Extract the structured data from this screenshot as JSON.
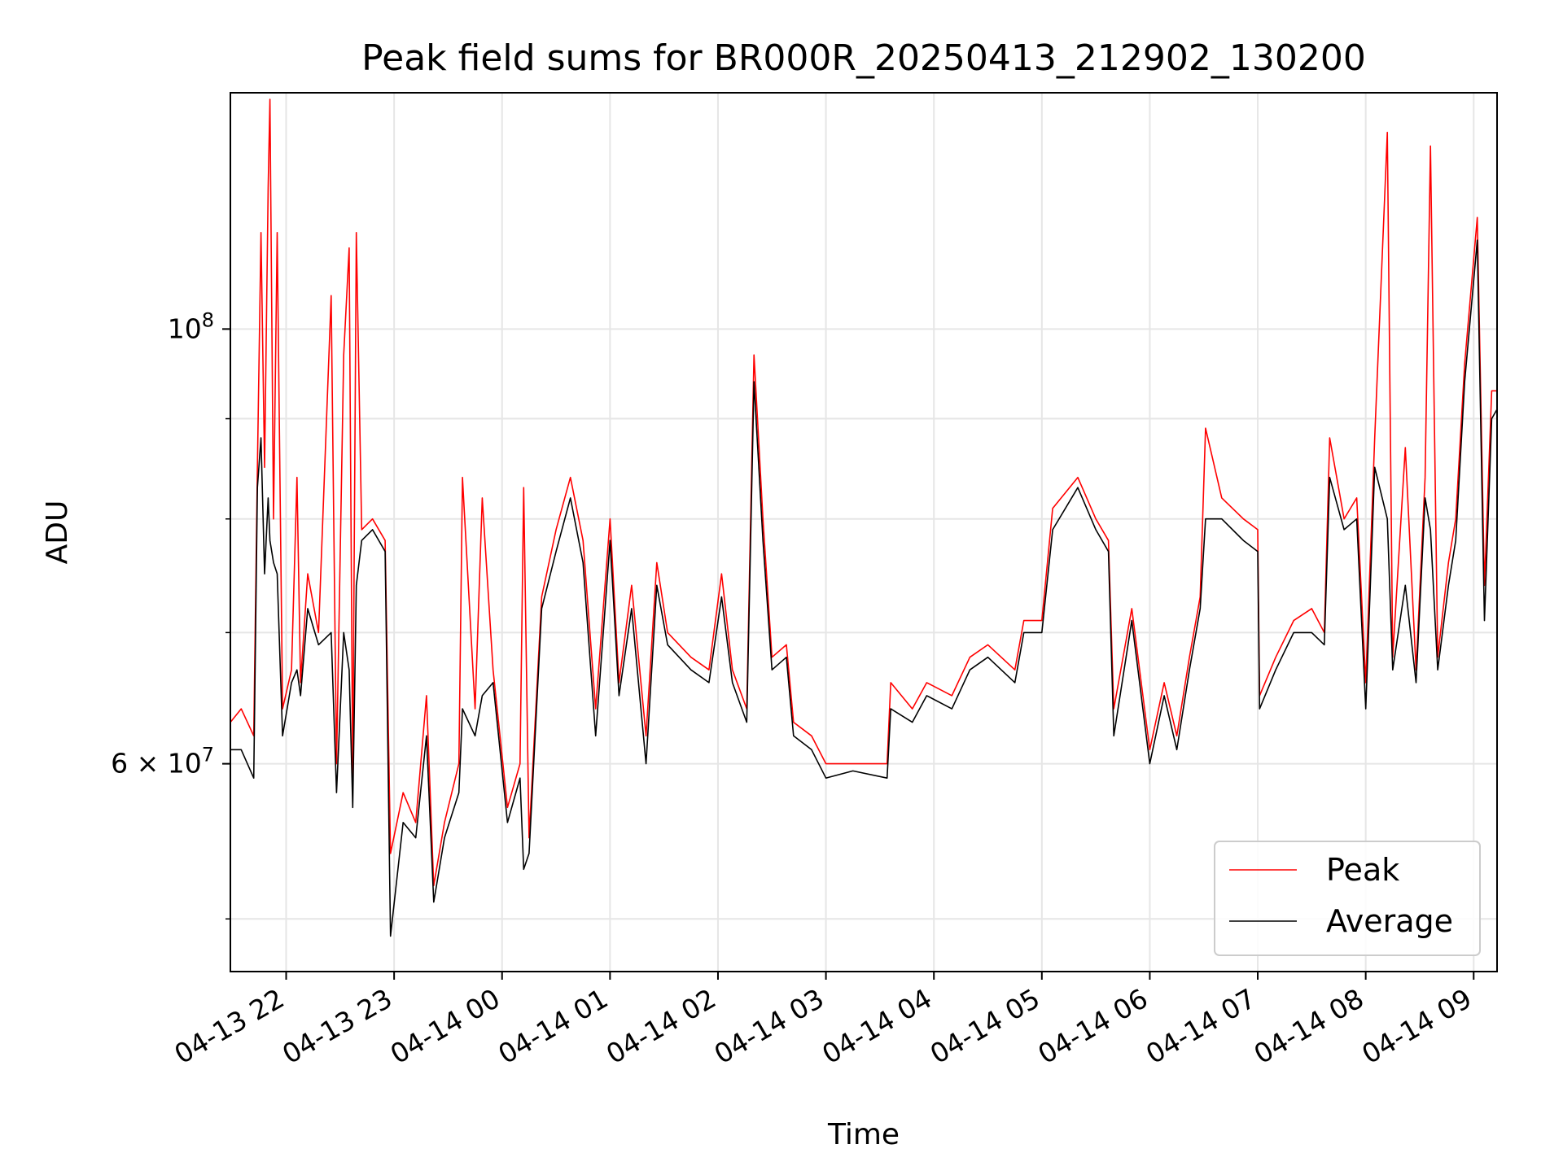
{
  "chart_data": {
    "type": "line",
    "title": "Peak field sums for BR000R_20250413_212902_130200",
    "xlabel": "Time",
    "ylabel": "ADU",
    "y_scale": "log",
    "xlim": [
      "2025-04-13 21:29",
      "2025-04-14 09:13"
    ],
    "ylim": [
      47000000,
      132000000
    ],
    "x_tick_labels": [
      "04-13 22",
      "04-13 23",
      "04-14 00",
      "04-14 01",
      "04-14 02",
      "04-14 03",
      "04-14 04",
      "04-14 05",
      "04-14 06",
      "04-14 07",
      "04-14 08",
      "04-14 09"
    ],
    "x_tick_times": [
      "2025-04-13 22:00",
      "2025-04-13 23:00",
      "2025-04-14 00:00",
      "2025-04-14 01:00",
      "2025-04-14 02:00",
      "2025-04-14 03:00",
      "2025-04-14 04:00",
      "2025-04-14 05:00",
      "2025-04-14 06:00",
      "2025-04-14 07:00",
      "2025-04-14 08:00",
      "2025-04-14 09:00"
    ],
    "y_tick_values": [
      100000000,
      60000000
    ],
    "y_tick_labels": [
      {
        "base": "10",
        "exp": "8"
      },
      {
        "mant": "6 × ",
        "base": "10",
        "exp": "7"
      }
    ],
    "y_minor_ticks": [
      50000000,
      70000000,
      80000000,
      90000000
    ],
    "grid": true,
    "legend_position": "lower right",
    "legend": [
      "Peak",
      "Average"
    ],
    "colors": {
      "Peak": "#ff0000",
      "Average": "#000000"
    },
    "series": [
      {
        "name": "Peak",
        "color": "#ff0000",
        "points": [
          [
            "2025-04-13 21:29",
            63000000
          ],
          [
            "2025-04-13 21:35",
            64000000
          ],
          [
            "2025-04-13 21:42",
            62000000
          ],
          [
            "2025-04-13 21:44",
            85000000
          ],
          [
            "2025-04-13 21:46",
            112000000
          ],
          [
            "2025-04-13 21:48",
            85000000
          ],
          [
            "2025-04-13 21:50",
            118000000
          ],
          [
            "2025-04-13 21:51",
            131000000
          ],
          [
            "2025-04-13 21:53",
            80000000
          ],
          [
            "2025-04-13 21:55",
            112000000
          ],
          [
            "2025-04-13 21:58",
            64000000
          ],
          [
            "2025-04-13 22:03",
            67000000
          ],
          [
            "2025-04-13 22:06",
            84000000
          ],
          [
            "2025-04-13 22:08",
            66000000
          ],
          [
            "2025-04-13 22:12",
            75000000
          ],
          [
            "2025-04-13 22:18",
            70000000
          ],
          [
            "2025-04-13 22:25",
            104000000
          ],
          [
            "2025-04-13 22:28",
            60000000
          ],
          [
            "2025-04-13 22:32",
            97000000
          ],
          [
            "2025-04-13 22:35",
            110000000
          ],
          [
            "2025-04-13 22:37",
            59000000
          ],
          [
            "2025-04-13 22:39",
            112000000
          ],
          [
            "2025-04-13 22:42",
            79000000
          ],
          [
            "2025-04-13 22:48",
            80000000
          ],
          [
            "2025-04-13 22:55",
            78000000
          ],
          [
            "2025-04-13 22:58",
            54000000
          ],
          [
            "2025-04-13 23:05",
            58000000
          ],
          [
            "2025-04-13 23:12",
            56000000
          ],
          [
            "2025-04-13 23:18",
            65000000
          ],
          [
            "2025-04-13 23:22",
            52000000
          ],
          [
            "2025-04-13 23:28",
            56000000
          ],
          [
            "2025-04-13 23:36",
            60000000
          ],
          [
            "2025-04-13 23:38",
            84000000
          ],
          [
            "2025-04-13 23:45",
            64000000
          ],
          [
            "2025-04-13 23:49",
            82000000
          ],
          [
            "2025-04-13 23:55",
            67000000
          ],
          [
            "2025-04-14 00:03",
            57000000
          ],
          [
            "2025-04-14 00:10",
            60000000
          ],
          [
            "2025-04-14 00:12",
            83000000
          ],
          [
            "2025-04-14 00:15",
            55000000
          ],
          [
            "2025-04-14 00:22",
            73000000
          ],
          [
            "2025-04-14 00:30",
            79000000
          ],
          [
            "2025-04-14 00:38",
            84000000
          ],
          [
            "2025-04-14 00:45",
            78000000
          ],
          [
            "2025-04-14 00:52",
            64000000
          ],
          [
            "2025-04-14 01:00",
            80000000
          ],
          [
            "2025-04-14 01:05",
            66000000
          ],
          [
            "2025-04-14 01:12",
            74000000
          ],
          [
            "2025-04-14 01:20",
            62000000
          ],
          [
            "2025-04-14 01:26",
            76000000
          ],
          [
            "2025-04-14 01:32",
            70000000
          ],
          [
            "2025-04-14 01:45",
            68000000
          ],
          [
            "2025-04-14 01:55",
            67000000
          ],
          [
            "2025-04-14 02:02",
            75000000
          ],
          [
            "2025-04-14 02:08",
            67000000
          ],
          [
            "2025-04-14 02:16",
            64000000
          ],
          [
            "2025-04-14 02:20",
            97000000
          ],
          [
            "2025-04-14 02:25",
            80000000
          ],
          [
            "2025-04-14 02:30",
            68000000
          ],
          [
            "2025-04-14 02:38",
            69000000
          ],
          [
            "2025-04-14 02:42",
            63000000
          ],
          [
            "2025-04-14 02:52",
            62000000
          ],
          [
            "2025-04-14 03:00",
            60000000
          ],
          [
            "2025-04-14 03:15",
            60000000
          ],
          [
            "2025-04-14 03:34",
            60000000
          ],
          [
            "2025-04-14 03:36",
            66000000
          ],
          [
            "2025-04-14 03:48",
            64000000
          ],
          [
            "2025-04-14 03:56",
            66000000
          ],
          [
            "2025-04-14 04:10",
            65000000
          ],
          [
            "2025-04-14 04:20",
            68000000
          ],
          [
            "2025-04-14 04:30",
            69000000
          ],
          [
            "2025-04-14 04:45",
            67000000
          ],
          [
            "2025-04-14 04:50",
            71000000
          ],
          [
            "2025-04-14 05:00",
            71000000
          ],
          [
            "2025-04-14 05:06",
            81000000
          ],
          [
            "2025-04-14 05:20",
            84000000
          ],
          [
            "2025-04-14 05:30",
            80000000
          ],
          [
            "2025-04-14 05:37",
            78000000
          ],
          [
            "2025-04-14 05:40",
            64000000
          ],
          [
            "2025-04-14 05:50",
            72000000
          ],
          [
            "2025-04-14 06:00",
            61000000
          ],
          [
            "2025-04-14 06:08",
            66000000
          ],
          [
            "2025-04-14 06:15",
            62000000
          ],
          [
            "2025-04-14 06:22",
            68000000
          ],
          [
            "2025-04-14 06:28",
            73000000
          ],
          [
            "2025-04-14 06:31",
            89000000
          ],
          [
            "2025-04-14 06:40",
            82000000
          ],
          [
            "2025-04-14 06:52",
            80000000
          ],
          [
            "2025-04-14 07:00",
            79000000
          ],
          [
            "2025-04-14 07:01",
            65000000
          ],
          [
            "2025-04-14 07:10",
            68000000
          ],
          [
            "2025-04-14 07:20",
            71000000
          ],
          [
            "2025-04-14 07:30",
            72000000
          ],
          [
            "2025-04-14 07:37",
            70000000
          ],
          [
            "2025-04-14 07:40",
            88000000
          ],
          [
            "2025-04-14 07:48",
            80000000
          ],
          [
            "2025-04-14 07:55",
            82000000
          ],
          [
            "2025-04-14 08:00",
            66000000
          ],
          [
            "2025-04-14 08:05",
            88000000
          ],
          [
            "2025-04-14 08:12",
            126000000
          ],
          [
            "2025-04-14 08:15",
            68000000
          ],
          [
            "2025-04-14 08:22",
            87000000
          ],
          [
            "2025-04-14 08:28",
            67000000
          ],
          [
            "2025-04-14 08:33",
            84000000
          ],
          [
            "2025-04-14 08:36",
            124000000
          ],
          [
            "2025-04-14 08:40",
            68000000
          ],
          [
            "2025-04-14 08:46",
            76000000
          ],
          [
            "2025-04-14 08:50",
            80000000
          ],
          [
            "2025-04-14 08:55",
            96000000
          ],
          [
            "2025-04-14 09:02",
            114000000
          ],
          [
            "2025-04-14 09:06",
            74000000
          ],
          [
            "2025-04-14 09:10",
            93000000
          ],
          [
            "2025-04-14 09:13",
            93000000
          ]
        ]
      },
      {
        "name": "Average",
        "color": "#000000",
        "points": [
          [
            "2025-04-13 21:29",
            61000000
          ],
          [
            "2025-04-13 21:35",
            61000000
          ],
          [
            "2025-04-13 21:42",
            59000000
          ],
          [
            "2025-04-13 21:44",
            83000000
          ],
          [
            "2025-04-13 21:46",
            88000000
          ],
          [
            "2025-04-13 21:48",
            75000000
          ],
          [
            "2025-04-13 21:50",
            82000000
          ],
          [
            "2025-04-13 21:51",
            78000000
          ],
          [
            "2025-04-13 21:53",
            76000000
          ],
          [
            "2025-04-13 21:55",
            75000000
          ],
          [
            "2025-04-13 21:58",
            62000000
          ],
          [
            "2025-04-13 22:03",
            66000000
          ],
          [
            "2025-04-13 22:06",
            67000000
          ],
          [
            "2025-04-13 22:08",
            65000000
          ],
          [
            "2025-04-13 22:12",
            72000000
          ],
          [
            "2025-04-13 22:18",
            69000000
          ],
          [
            "2025-04-13 22:25",
            70000000
          ],
          [
            "2025-04-13 22:28",
            58000000
          ],
          [
            "2025-04-13 22:32",
            70000000
          ],
          [
            "2025-04-13 22:35",
            67000000
          ],
          [
            "2025-04-13 22:37",
            57000000
          ],
          [
            "2025-04-13 22:39",
            74000000
          ],
          [
            "2025-04-13 22:42",
            78000000
          ],
          [
            "2025-04-13 22:48",
            79000000
          ],
          [
            "2025-04-13 22:55",
            77000000
          ],
          [
            "2025-04-13 22:58",
            49000000
          ],
          [
            "2025-04-13 23:05",
            56000000
          ],
          [
            "2025-04-13 23:12",
            55000000
          ],
          [
            "2025-04-13 23:18",
            62000000
          ],
          [
            "2025-04-13 23:22",
            51000000
          ],
          [
            "2025-04-13 23:28",
            55000000
          ],
          [
            "2025-04-13 23:36",
            58000000
          ],
          [
            "2025-04-13 23:38",
            64000000
          ],
          [
            "2025-04-13 23:45",
            62000000
          ],
          [
            "2025-04-13 23:49",
            65000000
          ],
          [
            "2025-04-13 23:55",
            66000000
          ],
          [
            "2025-04-14 00:03",
            56000000
          ],
          [
            "2025-04-14 00:10",
            59000000
          ],
          [
            "2025-04-14 00:12",
            53000000
          ],
          [
            "2025-04-14 00:15",
            54000000
          ],
          [
            "2025-04-14 00:22",
            72000000
          ],
          [
            "2025-04-14 00:30",
            77000000
          ],
          [
            "2025-04-14 00:38",
            82000000
          ],
          [
            "2025-04-14 00:45",
            76000000
          ],
          [
            "2025-04-14 00:52",
            62000000
          ],
          [
            "2025-04-14 01:00",
            78000000
          ],
          [
            "2025-04-14 01:05",
            65000000
          ],
          [
            "2025-04-14 01:12",
            72000000
          ],
          [
            "2025-04-14 01:20",
            60000000
          ],
          [
            "2025-04-14 01:26",
            74000000
          ],
          [
            "2025-04-14 01:32",
            69000000
          ],
          [
            "2025-04-14 01:45",
            67000000
          ],
          [
            "2025-04-14 01:55",
            66000000
          ],
          [
            "2025-04-14 02:02",
            73000000
          ],
          [
            "2025-04-14 02:08",
            66000000
          ],
          [
            "2025-04-14 02:16",
            63000000
          ],
          [
            "2025-04-14 02:20",
            94000000
          ],
          [
            "2025-04-14 02:25",
            78000000
          ],
          [
            "2025-04-14 02:30",
            67000000
          ],
          [
            "2025-04-14 02:38",
            68000000
          ],
          [
            "2025-04-14 02:42",
            62000000
          ],
          [
            "2025-04-14 02:52",
            61000000
          ],
          [
            "2025-04-14 03:00",
            59000000
          ],
          [
            "2025-04-14 03:15",
            59500000
          ],
          [
            "2025-04-14 03:34",
            59000000
          ],
          [
            "2025-04-14 03:36",
            64000000
          ],
          [
            "2025-04-14 03:48",
            63000000
          ],
          [
            "2025-04-14 03:56",
            65000000
          ],
          [
            "2025-04-14 04:10",
            64000000
          ],
          [
            "2025-04-14 04:20",
            67000000
          ],
          [
            "2025-04-14 04:30",
            68000000
          ],
          [
            "2025-04-14 04:45",
            66000000
          ],
          [
            "2025-04-14 04:50",
            70000000
          ],
          [
            "2025-04-14 05:00",
            70000000
          ],
          [
            "2025-04-14 05:06",
            79000000
          ],
          [
            "2025-04-14 05:20",
            83000000
          ],
          [
            "2025-04-14 05:30",
            79000000
          ],
          [
            "2025-04-14 05:37",
            77000000
          ],
          [
            "2025-04-14 05:40",
            62000000
          ],
          [
            "2025-04-14 05:50",
            71000000
          ],
          [
            "2025-04-14 06:00",
            60000000
          ],
          [
            "2025-04-14 06:08",
            65000000
          ],
          [
            "2025-04-14 06:15",
            61000000
          ],
          [
            "2025-04-14 06:22",
            67000000
          ],
          [
            "2025-04-14 06:28",
            72000000
          ],
          [
            "2025-04-14 06:31",
            80000000
          ],
          [
            "2025-04-14 06:40",
            80000000
          ],
          [
            "2025-04-14 06:52",
            78000000
          ],
          [
            "2025-04-14 07:00",
            77000000
          ],
          [
            "2025-04-14 07:01",
            64000000
          ],
          [
            "2025-04-14 07:10",
            67000000
          ],
          [
            "2025-04-14 07:20",
            70000000
          ],
          [
            "2025-04-14 07:30",
            70000000
          ],
          [
            "2025-04-14 07:37",
            69000000
          ],
          [
            "2025-04-14 07:40",
            84000000
          ],
          [
            "2025-04-14 07:48",
            79000000
          ],
          [
            "2025-04-14 07:55",
            80000000
          ],
          [
            "2025-04-14 08:00",
            64000000
          ],
          [
            "2025-04-14 08:05",
            85000000
          ],
          [
            "2025-04-14 08:12",
            80000000
          ],
          [
            "2025-04-14 08:15",
            67000000
          ],
          [
            "2025-04-14 08:22",
            74000000
          ],
          [
            "2025-04-14 08:28",
            66000000
          ],
          [
            "2025-04-14 08:33",
            82000000
          ],
          [
            "2025-04-14 08:36",
            79000000
          ],
          [
            "2025-04-14 08:40",
            67000000
          ],
          [
            "2025-04-14 08:46",
            74000000
          ],
          [
            "2025-04-14 08:50",
            78000000
          ],
          [
            "2025-04-14 08:55",
            94000000
          ],
          [
            "2025-04-14 09:02",
            111000000
          ],
          [
            "2025-04-14 09:06",
            71000000
          ],
          [
            "2025-04-14 09:10",
            90000000
          ],
          [
            "2025-04-14 09:13",
            91000000
          ]
        ]
      }
    ]
  }
}
